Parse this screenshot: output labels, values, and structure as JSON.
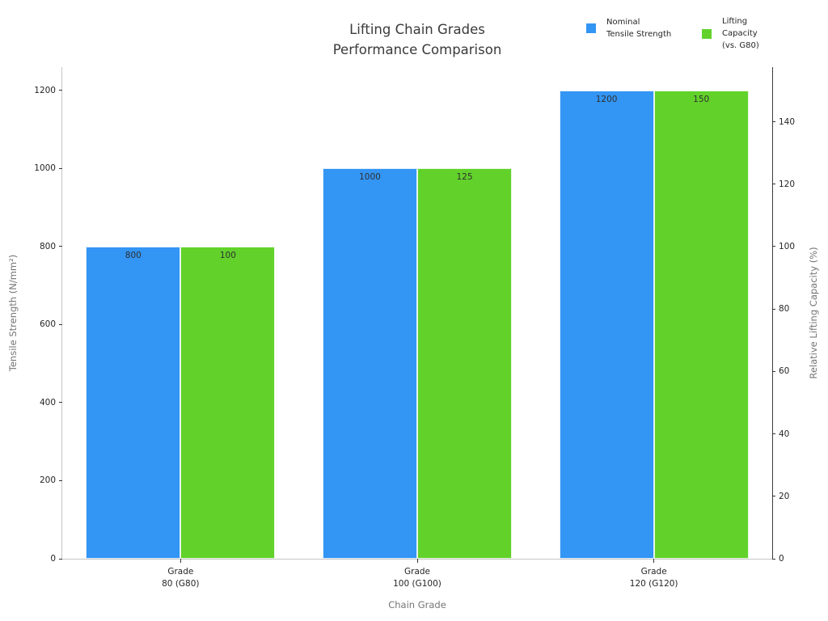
{
  "header": {
    "title": "Lifting Chain Grades\nPerformance Comparison"
  },
  "legend": {
    "position": "top-right",
    "items": [
      {
        "label": "Nominal\nTensile Strength",
        "color": "#3395f4"
      },
      {
        "label": "Lifting\nCapacity\n(vs. G80)",
        "color": "#62d22b"
      }
    ]
  },
  "chart_data": {
    "type": "bar",
    "title": "Lifting Chain Grades Performance Comparison",
    "categories": [
      "Grade\n80 (G80)",
      "Grade\n100 (G100)",
      "Grade\n120 (G120)"
    ],
    "series": [
      {
        "name": "Nominal Tensile Strength",
        "axis": "left",
        "color": "#3395f4",
        "values": [
          800,
          1000,
          1200
        ]
      },
      {
        "name": "Lifting Capacity (vs. G80)",
        "axis": "right",
        "color": "#62d22b",
        "values": [
          100,
          125,
          150
        ]
      }
    ],
    "bar_value_labels": [
      [
        "800",
        "1000",
        "1200"
      ],
      [
        "100",
        "125",
        "150"
      ]
    ],
    "xlabel": "Chain Grade",
    "ylabel_left": "Tensile Strength (N/mm²)",
    "ylabel_right": "Relative Lifting Capacity (%)",
    "yticks_left": [
      0,
      200,
      400,
      600,
      800,
      1000,
      1200
    ],
    "yticks_right": [
      0,
      20,
      40,
      60,
      80,
      100,
      120,
      140
    ],
    "ylim_left": [
      0,
      1260
    ],
    "ylim_right": [
      0,
      157.5
    ],
    "grid": false,
    "legend_position": "top-right",
    "background": "#ffffff"
  }
}
